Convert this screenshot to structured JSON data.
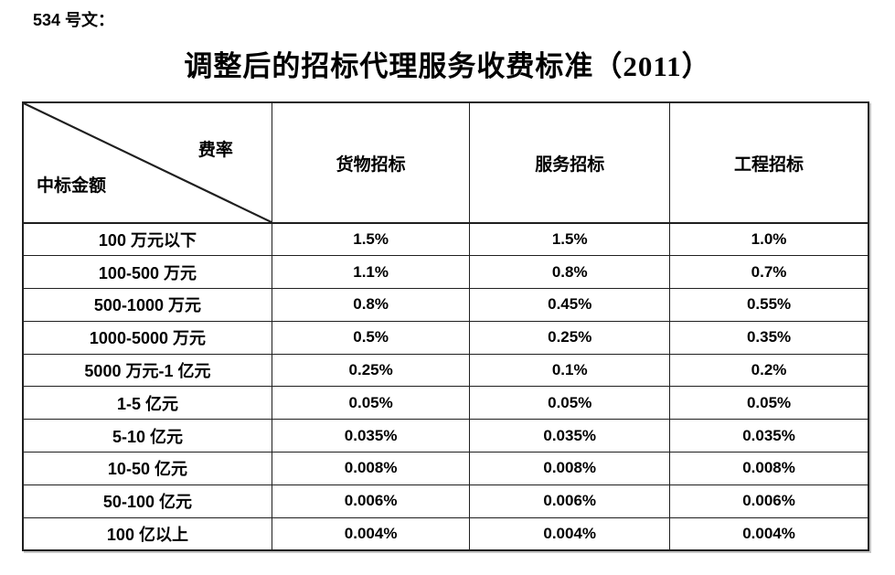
{
  "page": {
    "doc_label": "534 号文：",
    "title": "调整后的招标代理服务收费标准（2011）"
  },
  "table": {
    "corner": {
      "top_right": "费率",
      "bottom_left": "中标金额"
    },
    "columns": [
      "货物招标",
      "服务招标",
      "工程招标"
    ],
    "rows": [
      {
        "label": "100 万元以下",
        "values": [
          "1.5%",
          "1.5%",
          "1.0%"
        ]
      },
      {
        "label": "100-500 万元",
        "values": [
          "1.1%",
          "0.8%",
          "0.7%"
        ]
      },
      {
        "label": "500-1000 万元",
        "values": [
          "0.8%",
          "0.45%",
          "0.55%"
        ]
      },
      {
        "label": "1000-5000 万元",
        "values": [
          "0.5%",
          "0.25%",
          "0.35%"
        ]
      },
      {
        "label": "5000 万元-1 亿元",
        "values": [
          "0.25%",
          "0.1%",
          "0.2%"
        ]
      },
      {
        "label": "1-5 亿元",
        "values": [
          "0.05%",
          "0.05%",
          "0.05%"
        ]
      },
      {
        "label": "5-10 亿元",
        "values": [
          "0.035%",
          "0.035%",
          "0.035%"
        ]
      },
      {
        "label": "10-50 亿元",
        "values": [
          "0.008%",
          "0.008%",
          "0.008%"
        ]
      },
      {
        "label": "50-100 亿元",
        "values": [
          "0.006%",
          "0.006%",
          "0.006%"
        ]
      },
      {
        "label": "100 亿以上",
        "values": [
          "0.004%",
          "0.004%",
          "0.004%"
        ]
      }
    ],
    "colors": {
      "text": "#000000",
      "border": "#1f1f1f",
      "background": "#ffffff"
    }
  }
}
